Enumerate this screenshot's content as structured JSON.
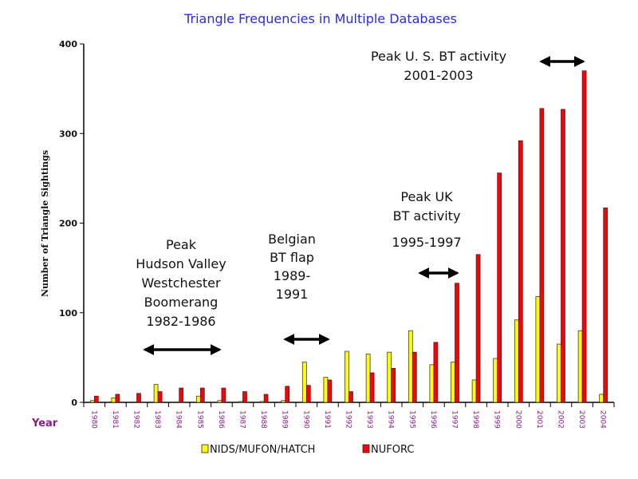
{
  "chart_data": {
    "type": "bar",
    "title": "Triangle Frequencies in Multiple Databases",
    "xlabel": "Year",
    "ylabel": "Number of Triangle Sightings",
    "ylim": [
      0,
      400
    ],
    "yticks": [
      0,
      100,
      200,
      300,
      400
    ],
    "categories": [
      "1980",
      "1981",
      "1982",
      "1983",
      "1984",
      "1985",
      "1986",
      "1987",
      "1988",
      "1989",
      "1990",
      "1991",
      "1992",
      "1993",
      "1994",
      "1995",
      "1996",
      "1997",
      "1998",
      "1999",
      "2000",
      "2001",
      "2002",
      "2003",
      "2004"
    ],
    "series": [
      {
        "name": "NIDS/MUFON/HATCH",
        "color": "#ffff00",
        "values": [
          2,
          5,
          0,
          20,
          0,
          7,
          2,
          1,
          1,
          2,
          45,
          28,
          57,
          54,
          56,
          80,
          42,
          45,
          25,
          49,
          92,
          118,
          65,
          80,
          9
        ]
      },
      {
        "name": "NUFORC",
        "color": "#ff0000",
        "values": [
          7,
          9,
          10,
          12,
          16,
          16,
          16,
          12,
          9,
          18,
          19,
          25,
          12,
          33,
          38,
          56,
          67,
          133,
          165,
          256,
          292,
          328,
          327,
          370,
          217
        ]
      }
    ],
    "legend_position": "bottom",
    "grid": false,
    "annotations": [
      {
        "lines": [
          "Peak",
          "Hudson Valley",
          "Westchester",
          "Boomerang",
          "1982-1986"
        ],
        "range": [
          "1982",
          "1986"
        ]
      },
      {
        "lines": [
          "Belgian",
          "BT flap",
          "1989-",
          "1991"
        ],
        "range": [
          "1989",
          "1991"
        ]
      },
      {
        "lines": [
          "Peak UK",
          "BT activity",
          "1995-1997"
        ],
        "range": [
          "1995",
          "1997"
        ]
      },
      {
        "lines": [
          "Peak U. S. BT activity",
          "2001-2003"
        ],
        "range": [
          "2001",
          "2003"
        ]
      }
    ]
  }
}
